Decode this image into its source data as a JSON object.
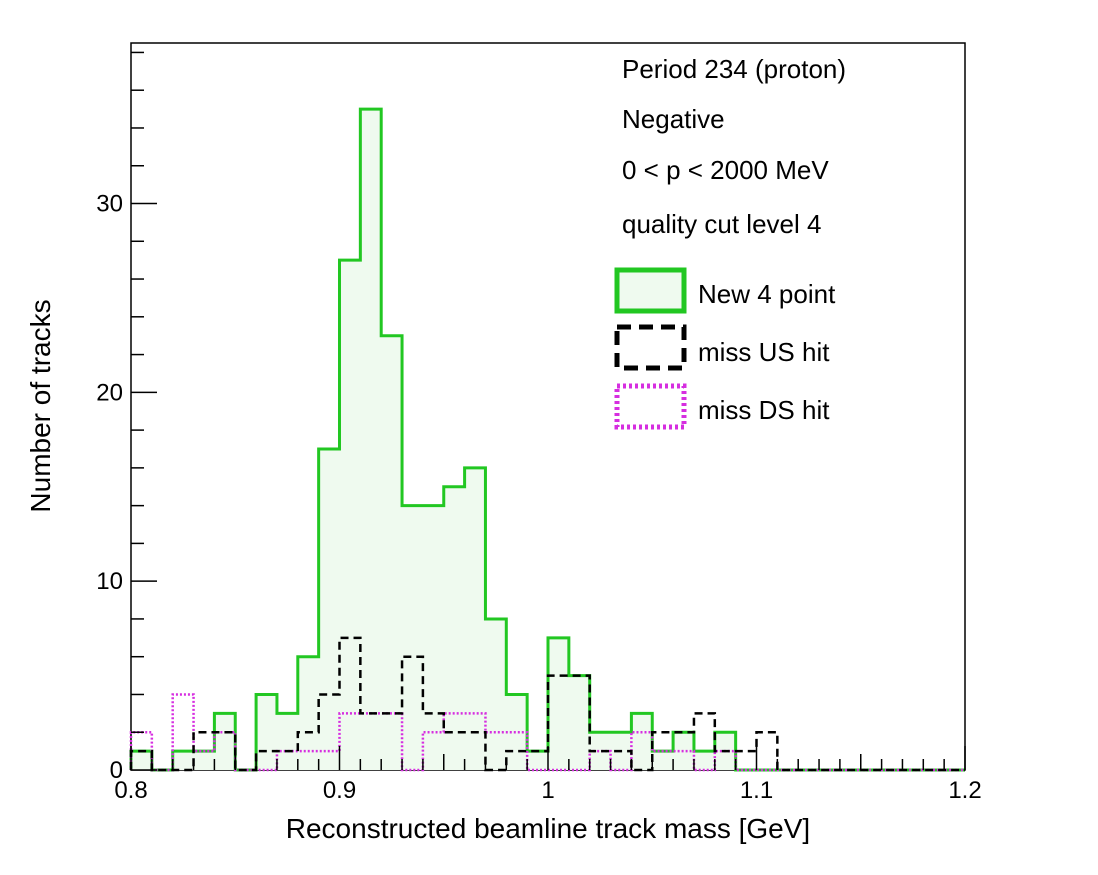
{
  "chart_data": {
    "type": "histogram",
    "title": "",
    "xlabel": "Reconstructed beamline track mass [GeV]",
    "ylabel": "Number of tracks",
    "xlim": [
      0.8,
      1.2
    ],
    "ylim": [
      0,
      38.5
    ],
    "bin_width": 0.01,
    "bin_edges_start": 0.8,
    "x_tick_labels": [
      "0.8",
      "0.9",
      "1",
      "1.1",
      "1.2"
    ],
    "x_tick_values": [
      0.8,
      0.9,
      1.0,
      1.1,
      1.2
    ],
    "y_tick_labels": [
      "0",
      "10",
      "20",
      "30"
    ],
    "y_tick_values": [
      0,
      10,
      20,
      30
    ],
    "annotations": [
      "Period 234 (proton)",
      "Negative",
      "0 < p < 2000 MeV",
      "quality cut level 4"
    ],
    "legend_placement": "top-right",
    "series": [
      {
        "name": "New 4 point",
        "color": "#22c722",
        "fill": "#effaef",
        "style": "solid",
        "values": [
          1,
          0,
          1,
          1,
          3,
          0,
          4,
          3,
          6,
          17,
          27,
          35,
          23,
          14,
          14,
          15,
          16,
          8,
          4,
          1,
          7,
          5,
          2,
          2,
          3,
          1,
          2,
          1,
          2,
          0,
          0,
          0,
          0,
          0,
          0,
          0,
          0,
          0,
          0,
          0
        ]
      },
      {
        "name": "miss US hit",
        "color": "#000000",
        "style": "dashed",
        "values": [
          1,
          0,
          0,
          2,
          2,
          0,
          1,
          1,
          2,
          4,
          7,
          3,
          3,
          6,
          3,
          2,
          2,
          0,
          1,
          1,
          5,
          5,
          1,
          1,
          0,
          2,
          2,
          3,
          1,
          1,
          2,
          0,
          0,
          0,
          0,
          0,
          0,
          0,
          0,
          0
        ]
      },
      {
        "name": "miss DS hit",
        "color": "#d62ee0",
        "style": "dotted",
        "values": [
          2,
          0,
          4,
          1,
          2,
          0,
          0,
          1,
          1,
          1,
          3,
          3,
          3,
          0,
          2,
          3,
          3,
          2,
          2,
          0,
          0,
          0,
          1,
          0,
          2,
          1,
          1,
          0,
          1,
          0,
          0,
          0,
          0,
          0,
          0,
          0,
          0,
          0,
          0,
          0
        ]
      }
    ]
  }
}
